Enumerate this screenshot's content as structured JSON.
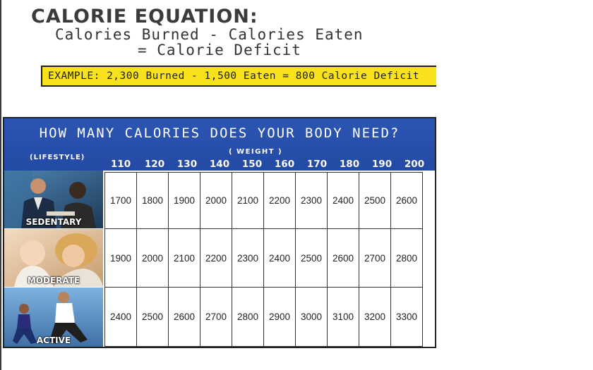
{
  "title": "CALORIE EQUATION:",
  "equation": {
    "line1": "Calories Burned - Calories Eaten",
    "line2": "= Calorie Deficit"
  },
  "example": "EXAMPLE: 2,300 Burned - 1,500 Eaten = 800 Calorie Deficit",
  "table": {
    "title": "HOW MANY CALORIES DOES YOUR BODY NEED?",
    "lifestyle_label": "(LIFESTYLE)",
    "weight_label": "( WEIGHT )",
    "weights": [
      "110",
      "120",
      "130",
      "140",
      "150",
      "160",
      "170",
      "180",
      "190",
      "200"
    ],
    "rows": [
      {
        "lifestyle": "SEDENTARY",
        "values": [
          "1700",
          "1800",
          "1900",
          "2000",
          "2100",
          "2200",
          "2300",
          "2400",
          "2500",
          "2600"
        ]
      },
      {
        "lifestyle": "MODERATE",
        "values": [
          "1900",
          "2000",
          "2100",
          "2200",
          "2300",
          "2400",
          "2500",
          "2600",
          "2700",
          "2800"
        ]
      },
      {
        "lifestyle": "ACTIVE",
        "values": [
          "2400",
          "2500",
          "2600",
          "2700",
          "2800",
          "2900",
          "3000",
          "3100",
          "3200",
          "3300"
        ]
      }
    ]
  },
  "colors": {
    "header_blue": "#2c55b2",
    "example_yellow": "#f7e21c"
  }
}
